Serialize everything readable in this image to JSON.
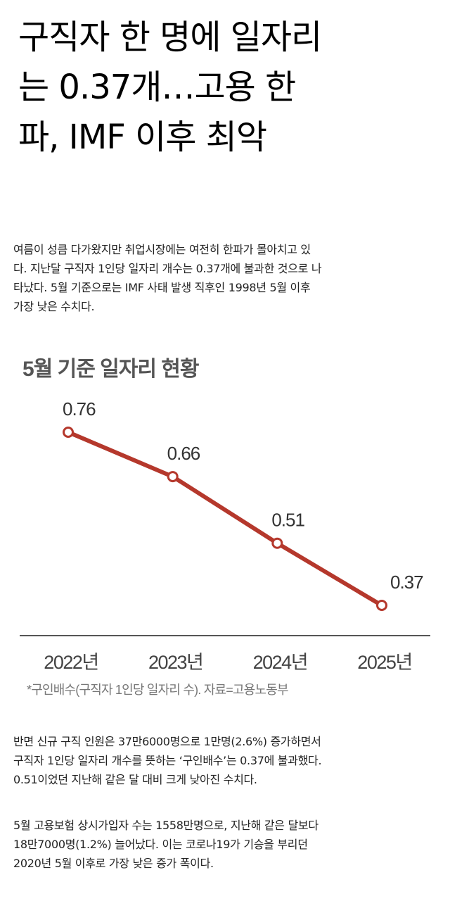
{
  "headline": {
    "lines": [
      "구직자 한 명에 일자리",
      "는 0.37개…고용 한",
      "파, IMF 이후 최악"
    ]
  },
  "intro": {
    "lines": [
      "여름이 성큼 다가왔지만 취업시장에는 여전히 한파가 몰아치고 있",
      "다. 지난달 구직자 1인당 일자리 개수는 0.37개에 불과한 것으로 나",
      "타났다. 5월 기준으로는 IMF 사태 발생 직후인 1998년 5월 이후",
      "가장 낮은 수치다."
    ]
  },
  "chart_data": {
    "type": "line",
    "title": "5월 기준 일자리 현황",
    "categories": [
      "2022년",
      "2023년",
      "2024년",
      "2025년"
    ],
    "values": [
      0.76,
      0.66,
      0.51,
      0.37
    ],
    "value_labels": [
      "0.76",
      "0.66",
      "0.51",
      "0.37"
    ],
    "ylim": [
      0.37,
      0.76
    ],
    "grid": false,
    "source": "*구인배수(구직자 1인당 일자리 수). 자료=고용노동부",
    "colors": {
      "line": "#b5382c",
      "marker_fill": "#ffffff",
      "axis": "#555555"
    }
  },
  "body2": {
    "lines": [
      "반면 신규 구직 인원은 37만6000명으로 1만명(2.6%) 증가하면서",
      "구직자 1인당 일자리 개수를 뜻하는 ‘구인배수’는 0.37에 불과했다.",
      "0.51이었던 지난해 같은 달 대비 크게 낮아진 수치다."
    ]
  },
  "body3": {
    "lines": [
      "5월 고용보험 상시가입자 수는 1558만명으로, 지난해 같은 달보다",
      "18만7000명(1.2%) 늘어났다. 이는 코로나19가 기승을 부리던",
      "2020년 5월 이후로 가장 낮은 증가 폭이다."
    ]
  }
}
